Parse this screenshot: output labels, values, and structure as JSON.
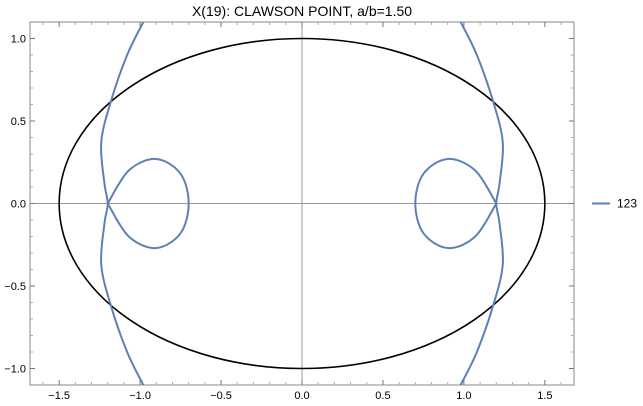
{
  "chart_data": {
    "type": "line",
    "title": "X(19): CLAWSON POINT, a/b=1.50",
    "xlabel": "",
    "ylabel": "",
    "xlim": [
      -1.68,
      1.68
    ],
    "ylim": [
      -1.1,
      1.1
    ],
    "x_ticks": [
      -1.5,
      -1.0,
      -0.5,
      0.0,
      0.5,
      1.0,
      1.5
    ],
    "x_tick_labels": [
      "−1.5",
      "−1.0",
      "−0.5",
      "0.0",
      "0.5",
      "1.0",
      "1.5"
    ],
    "y_ticks": [
      -1.0,
      -0.5,
      0.0,
      0.5,
      1.0
    ],
    "y_tick_labels": [
      "−1.0",
      "−0.5",
      "0.0",
      "0.5",
      "1.0"
    ],
    "grid": false,
    "legend_position": "right",
    "ellipse": {
      "a": 1.5,
      "b": 1.0,
      "color": "#000000"
    },
    "series": [
      {
        "name": "123",
        "color": "#5e81b5",
        "description_of_shape": "symmetric curve: two small loops around (±0.9, 0) and two large outer arcs crossing the ellipse",
        "loops": [
          {
            "points": [
              [
                -1.2,
                0.0
              ],
              [
                -1.07,
                0.2
              ],
              [
                -0.9,
                0.27
              ],
              [
                -0.75,
                0.18
              ],
              [
                -0.7,
                0.0
              ],
              [
                -0.75,
                -0.18
              ],
              [
                -0.9,
                -0.27
              ],
              [
                -1.07,
                -0.2
              ],
              [
                -1.2,
                0.0
              ]
            ]
          },
          {
            "points": [
              [
                1.2,
                0.0
              ],
              [
                1.07,
                0.2
              ],
              [
                0.9,
                0.27
              ],
              [
                0.75,
                0.18
              ],
              [
                0.7,
                0.0
              ],
              [
                0.75,
                -0.18
              ],
              [
                0.9,
                -0.27
              ],
              [
                1.07,
                -0.2
              ],
              [
                1.2,
                0.0
              ]
            ]
          }
        ],
        "arcs": [
          {
            "points": [
              [
                -0.98,
                1.1
              ],
              [
                -1.08,
                0.9
              ],
              [
                -1.18,
                0.62
              ],
              [
                -1.24,
                0.37
              ],
              [
                -1.22,
                0.12
              ],
              [
                -1.2,
                0.0
              ],
              [
                -1.22,
                -0.12
              ],
              [
                -1.24,
                -0.37
              ],
              [
                -1.18,
                -0.62
              ],
              [
                -1.08,
                -0.9
              ],
              [
                -0.98,
                -1.1
              ]
            ]
          },
          {
            "points": [
              [
                0.98,
                1.1
              ],
              [
                1.08,
                0.9
              ],
              [
                1.18,
                0.62
              ],
              [
                1.24,
                0.37
              ],
              [
                1.22,
                0.12
              ],
              [
                1.2,
                0.0
              ],
              [
                1.22,
                -0.12
              ],
              [
                1.24,
                -0.37
              ],
              [
                1.18,
                -0.62
              ],
              [
                1.08,
                -0.9
              ],
              [
                0.98,
                -1.1
              ]
            ]
          }
        ]
      }
    ]
  }
}
